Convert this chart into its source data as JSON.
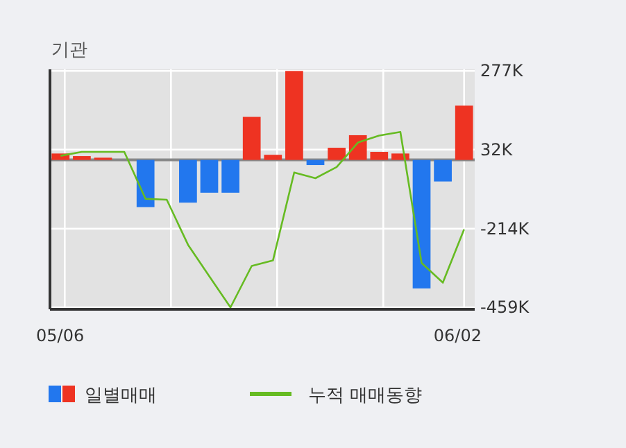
{
  "chart_data": {
    "type": "bar",
    "ylabel": "기관",
    "categories": [
      "05/06",
      null,
      null,
      null,
      null,
      null,
      null,
      null,
      null,
      null,
      null,
      null,
      null,
      null,
      null,
      null,
      null,
      null,
      null,
      "06/02"
    ],
    "ylim": [
      -465,
      282
    ],
    "yticks": [
      {
        "value": 277,
        "label": "277K"
      },
      {
        "value": 32,
        "label": "32K"
      },
      {
        "value": -214,
        "label": "-214K"
      },
      {
        "value": -459,
        "label": "-459K"
      }
    ],
    "grid": true,
    "legend": "bottom",
    "series": [
      {
        "name": "일별매매",
        "colors": [
          "#ee3322",
          "#ee3322",
          "#ee3322",
          "#ee3322",
          "#2277ee",
          "#2277ee",
          "#2277ee",
          "#2277ee",
          "#2277ee",
          "#ee3322",
          "#ee3322",
          "#ee3322",
          "#2277ee",
          "#ee3322",
          "#ee3322",
          "#ee3322",
          "#ee3322",
          "#2277ee",
          "#2277ee",
          "#ee3322"
        ],
        "values": [
          20,
          12,
          7,
          0,
          -147,
          0,
          -133,
          -102,
          -102,
          134,
          16,
          277,
          -16,
          38,
          77,
          25,
          20,
          -400,
          -67,
          169
        ]
      },
      {
        "name": "누적 매매동향",
        "type": "line",
        "color": "#66bb22",
        "values": [
          13,
          25,
          25,
          25,
          -121,
          -124,
          -264,
          -362,
          -459,
          -330,
          -313,
          -39,
          -57,
          -22,
          54,
          76,
          87,
          -321,
          -382,
          -216
        ]
      }
    ]
  }
}
